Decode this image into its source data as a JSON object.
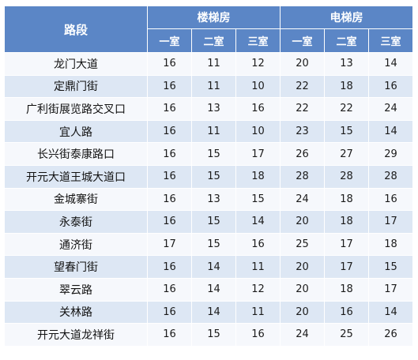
{
  "table": {
    "header_road": "路段",
    "group_stairs": "楼梯房",
    "group_elevator": "电梯房",
    "stairs_sub": [
      "一室",
      "二室",
      "三室"
    ],
    "elevator_sub": [
      "一室",
      "二室",
      "三室"
    ],
    "rows": [
      {
        "road": "龙门大道",
        "stairs": [
          "16",
          "11",
          "12"
        ],
        "elevator": [
          "20",
          "13",
          "14"
        ]
      },
      {
        "road": "定鼎门街",
        "stairs": [
          "16",
          "11",
          "10"
        ],
        "elevator": [
          "22",
          "18",
          "16"
        ]
      },
      {
        "road": "广利街展览路交叉口",
        "stairs": [
          "16",
          "13",
          "16"
        ],
        "elevator": [
          "22",
          "22",
          "24"
        ]
      },
      {
        "road": "宜人路",
        "stairs": [
          "16",
          "11",
          "10"
        ],
        "elevator": [
          "23",
          "15",
          "14"
        ]
      },
      {
        "road": "长兴街泰康路口",
        "stairs": [
          "16",
          "15",
          "17"
        ],
        "elevator": [
          "26",
          "27",
          "29"
        ]
      },
      {
        "road": "开元大道王城大道口",
        "stairs": [
          "16",
          "15",
          "18"
        ],
        "elevator": [
          "28",
          "28",
          "28"
        ]
      },
      {
        "road": "金城寨街",
        "stairs": [
          "16",
          "13",
          "15"
        ],
        "elevator": [
          "24",
          "18",
          "16"
        ]
      },
      {
        "road": "永泰街",
        "stairs": [
          "16",
          "15",
          "14"
        ],
        "elevator": [
          "20",
          "18",
          "17"
        ]
      },
      {
        "road": "通济街",
        "stairs": [
          "17",
          "15",
          "16"
        ],
        "elevator": [
          "25",
          "17",
          "18"
        ]
      },
      {
        "road": "望春门街",
        "stairs": [
          "16",
          "14",
          "11"
        ],
        "elevator": [
          "20",
          "17",
          "15"
        ]
      },
      {
        "road": "翠云路",
        "stairs": [
          "16",
          "14",
          "12"
        ],
        "elevator": [
          "20",
          "18",
          "17"
        ]
      },
      {
        "road": "关林路",
        "stairs": [
          "16",
          "14",
          "11"
        ],
        "elevator": [
          "20",
          "16",
          "14"
        ]
      },
      {
        "road": "开元大道龙祥街",
        "stairs": [
          "16",
          "15",
          "16"
        ],
        "elevator": [
          "24",
          "25",
          "26"
        ]
      }
    ]
  }
}
